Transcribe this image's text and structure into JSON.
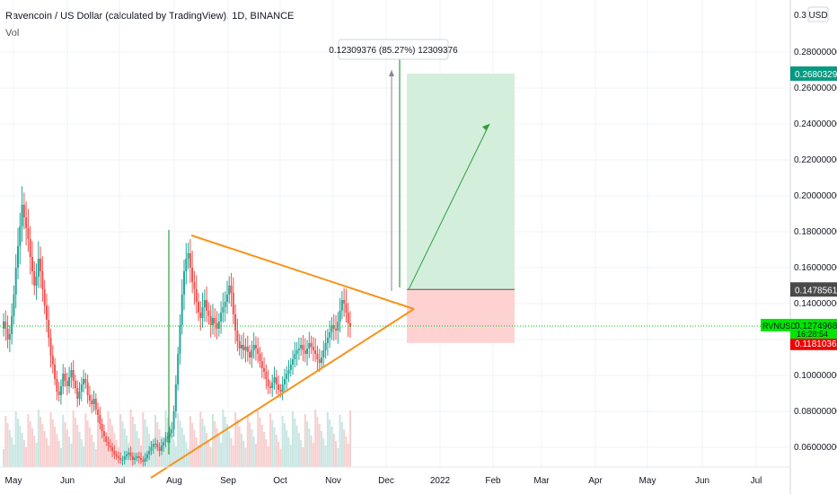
{
  "header": {
    "symbol_title": "Ravencoin / US Dollar (calculated by TradingView), 1D, BINANCE",
    "volume_label": "Vol"
  },
  "currency_button": "USD",
  "chart_data": {
    "type": "candlestick",
    "symbol": "RVNUSD",
    "y_axis_ticks": [
      0.06,
      0.08,
      0.1,
      0.12,
      0.14,
      0.16,
      0.18,
      0.2,
      0.22,
      0.24,
      0.26,
      0.28
    ],
    "y_axis_tick_labels": [
      "0.06000000",
      "0.08000000",
      "0.10000000",
      "0.12000000",
      "0.14000000",
      "0.16000000",
      "0.18000000",
      "0.20000000",
      "0.22000000",
      "0.24000000",
      "0.26000000",
      "0.28000000"
    ],
    "y_axis_top_label": "0.3",
    "x_axis_labels": [
      "May",
      "Jun",
      "Jul",
      "Aug",
      "Sep",
      "Oct",
      "Nov",
      "Dec",
      "2022",
      "Feb",
      "Mar",
      "Apr",
      "May",
      "Jun",
      "Jul"
    ],
    "price_tags": {
      "target": {
        "label": "0.26803299",
        "value": 0.26803299,
        "color": "#089981"
      },
      "entry": {
        "label": "0.14785614",
        "value": 0.14785614,
        "color": "#4a4a4a"
      },
      "current": {
        "label": "0.12749689",
        "value": 0.12749689,
        "symbol": "RVNUSD",
        "countdown": "16:28:54",
        "color": "#00e600"
      },
      "stop": {
        "label": "0.11810362",
        "value": 0.11810362,
        "color": "#f00000"
      }
    },
    "measure_label": "0.12309376 (85.27%) 12309376",
    "colors": {
      "up": "#26a69a",
      "down": "#ef5350",
      "triangle": "#f7931a",
      "arrow": "#2e9e3a",
      "profit_zone": "#d4eedc",
      "loss_zone": "#ffd2d2"
    },
    "series": [
      {
        "name": "price",
        "closes": [
          0.13,
          0.126,
          0.12,
          0.123,
          0.133,
          0.145,
          0.16,
          0.172,
          0.183,
          0.195,
          0.188,
          0.182,
          0.176,
          0.166,
          0.158,
          0.15,
          0.155,
          0.165,
          0.158,
          0.148,
          0.139,
          0.131,
          0.121,
          0.111,
          0.106,
          0.098,
          0.091,
          0.089,
          0.094,
          0.101,
          0.097,
          0.094,
          0.099,
          0.103,
          0.097,
          0.093,
          0.087,
          0.091,
          0.095,
          0.098,
          0.096,
          0.089,
          0.086,
          0.084,
          0.087,
          0.081,
          0.078,
          0.073,
          0.069,
          0.066,
          0.063,
          0.061,
          0.06,
          0.058,
          0.056,
          0.055,
          0.054,
          0.053,
          0.053,
          0.055,
          0.056,
          0.057,
          0.055,
          0.053,
          0.054,
          0.055,
          0.054,
          0.053,
          0.052,
          0.054,
          0.056,
          0.058,
          0.06,
          0.062,
          0.062,
          0.06,
          0.058,
          0.061,
          0.063,
          0.065,
          0.066,
          0.068,
          0.07,
          0.08,
          0.095,
          0.112,
          0.128,
          0.145,
          0.158,
          0.165,
          0.168,
          0.16,
          0.152,
          0.148,
          0.141,
          0.135,
          0.132,
          0.138,
          0.142,
          0.136,
          0.133,
          0.128,
          0.132,
          0.129,
          0.126,
          0.13,
          0.135,
          0.138,
          0.141,
          0.145,
          0.15,
          0.146,
          0.134,
          0.125,
          0.119,
          0.115,
          0.117,
          0.114,
          0.116,
          0.113,
          0.11,
          0.114,
          0.117,
          0.115,
          0.112,
          0.108,
          0.104,
          0.102,
          0.098,
          0.094,
          0.093,
          0.096,
          0.099,
          0.095,
          0.092,
          0.091,
          0.095,
          0.098,
          0.101,
          0.103,
          0.106,
          0.109,
          0.112,
          0.114,
          0.115,
          0.117,
          0.114,
          0.112,
          0.115,
          0.118,
          0.116,
          0.114,
          0.112,
          0.109,
          0.107,
          0.11,
          0.114,
          0.118,
          0.121,
          0.124,
          0.128,
          0.126,
          0.125,
          0.13,
          0.136,
          0.142,
          0.14,
          0.135,
          0.129,
          0.127
        ]
      }
    ]
  }
}
